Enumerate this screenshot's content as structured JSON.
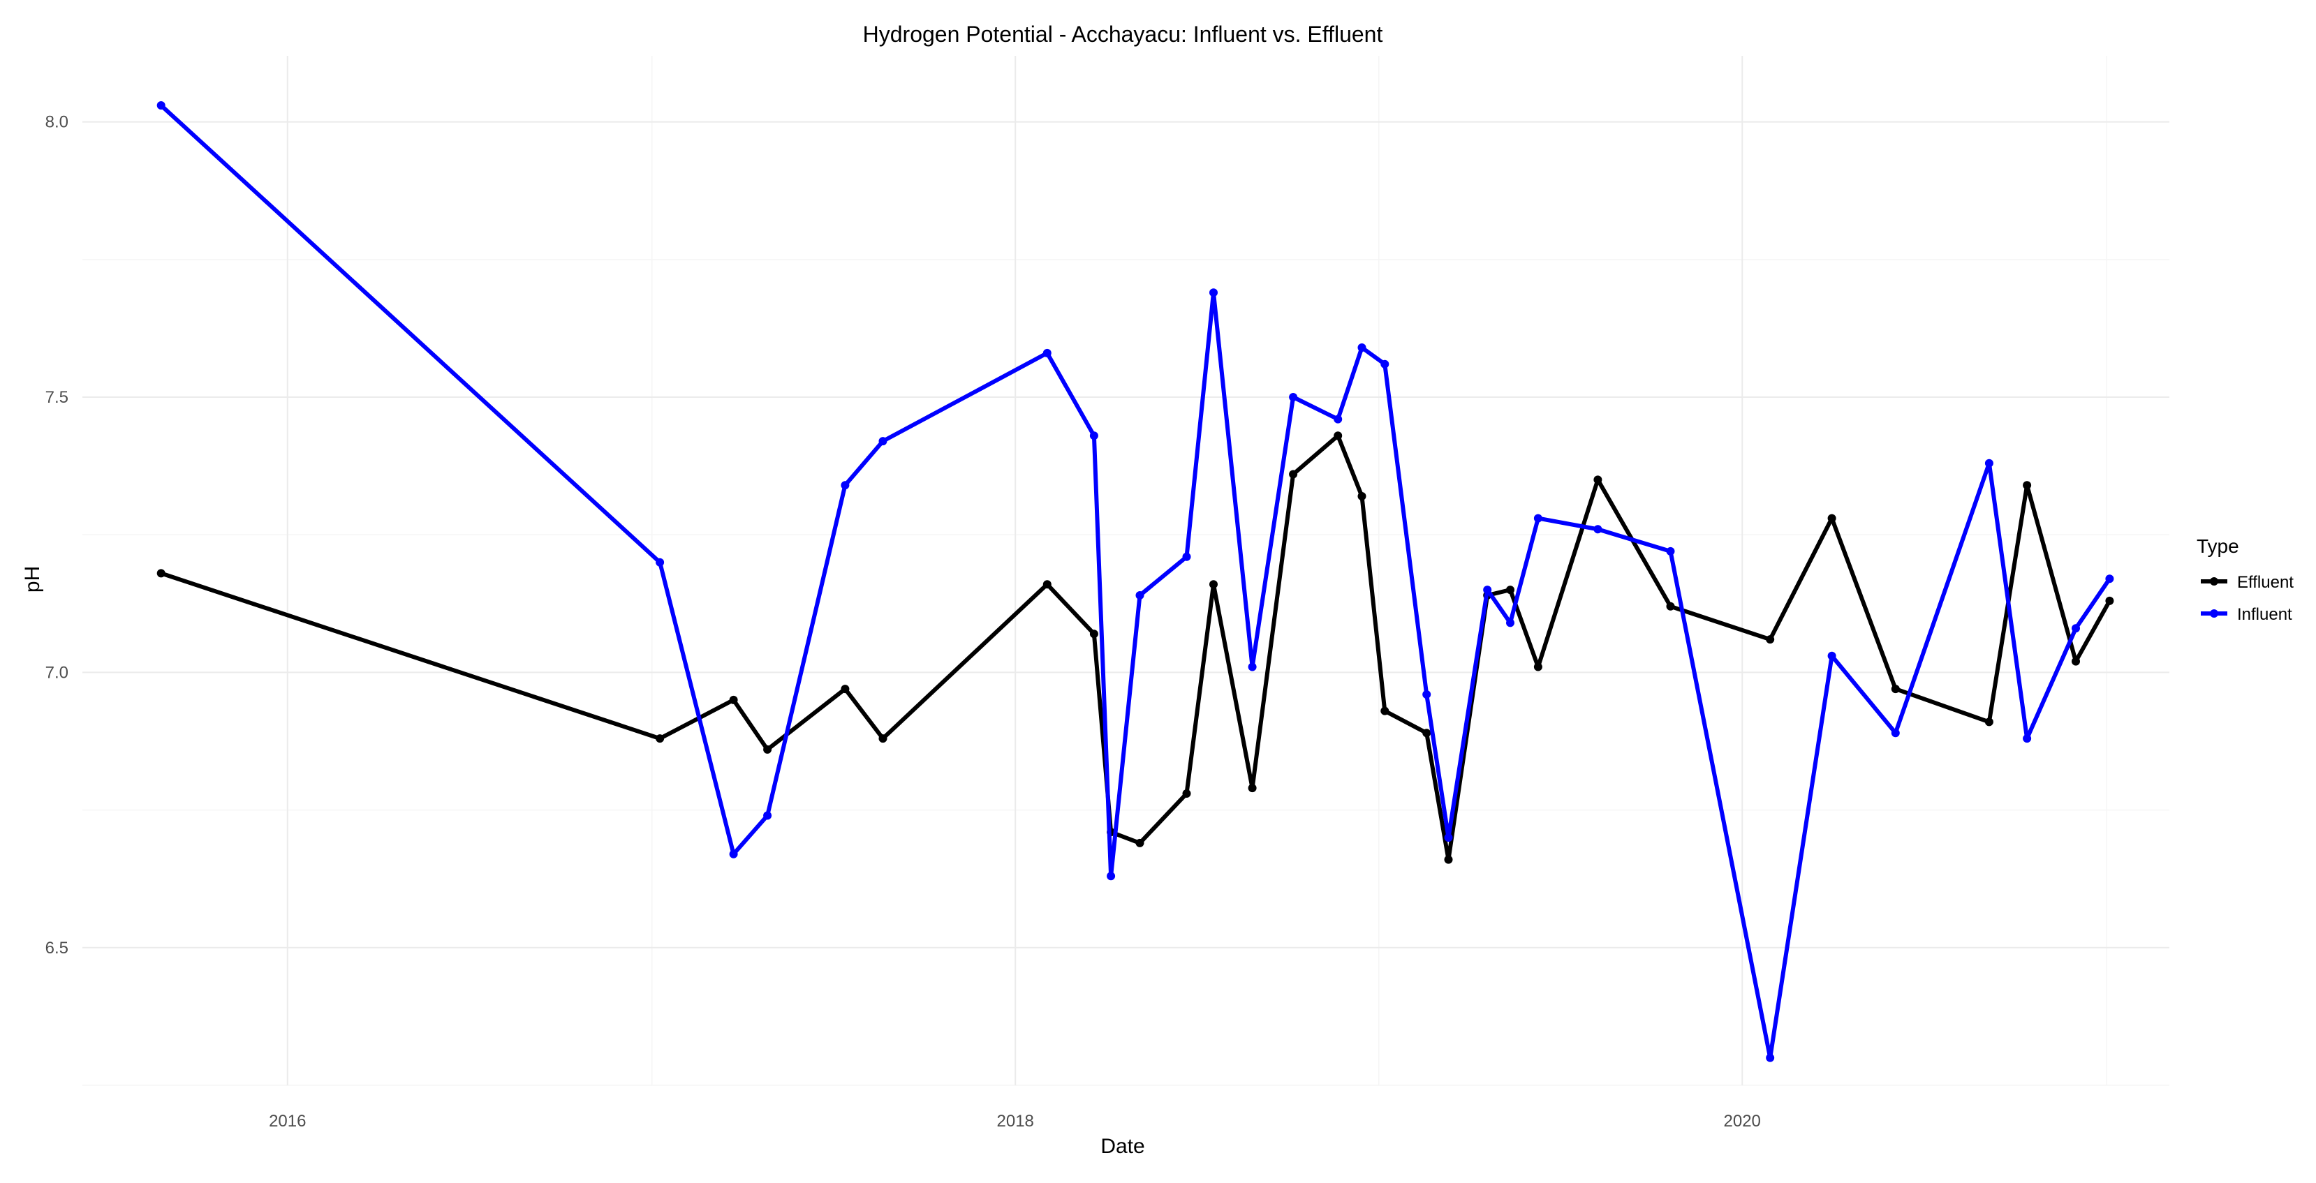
{
  "chart_data": {
    "type": "line",
    "title": "Hydrogen Potential - Acchayacu: Influent vs. Effluent",
    "xlabel": "Date",
    "ylabel": "pH",
    "x_ticks": [
      "2016",
      "2018",
      "2020"
    ],
    "y_ticks": [
      "6.5",
      "7.0",
      "7.5",
      "8.0"
    ],
    "xlim": [
      "2015-06-09",
      "2021-03-05"
    ],
    "ylim": [
      6.25,
      8.12
    ],
    "grid": true,
    "legend": {
      "title": "Type",
      "placement": "right"
    },
    "series": [
      {
        "name": "Effluent",
        "color": "#000000",
        "points": [
          [
            "2015-08-27",
            7.18
          ],
          [
            "2017-01-09",
            6.88
          ],
          [
            "2017-03-24",
            6.95
          ],
          [
            "2017-04-27",
            6.86
          ],
          [
            "2017-07-14",
            6.97
          ],
          [
            "2017-08-21",
            6.88
          ],
          [
            "2018-02-02",
            7.16
          ],
          [
            "2018-03-21",
            7.07
          ],
          [
            "2018-04-07",
            6.71
          ],
          [
            "2018-05-06",
            6.69
          ],
          [
            "2018-06-22",
            6.78
          ],
          [
            "2018-07-19",
            7.16
          ],
          [
            "2018-08-27",
            6.79
          ],
          [
            "2018-10-07",
            7.36
          ],
          [
            "2018-11-21",
            7.43
          ],
          [
            "2018-12-15",
            7.32
          ],
          [
            "2019-01-07",
            6.93
          ],
          [
            "2019-02-18",
            6.89
          ],
          [
            "2019-03-12",
            6.66
          ],
          [
            "2019-04-20",
            7.14
          ],
          [
            "2019-05-13",
            7.15
          ],
          [
            "2019-06-10",
            7.01
          ],
          [
            "2019-08-09",
            7.35
          ],
          [
            "2019-10-21",
            7.12
          ],
          [
            "2020-01-29",
            7.06
          ],
          [
            "2020-03-31",
            7.28
          ],
          [
            "2020-06-03",
            6.97
          ],
          [
            "2020-09-05",
            6.91
          ],
          [
            "2020-10-13",
            7.34
          ],
          [
            "2020-12-01",
            7.02
          ],
          [
            "2021-01-04",
            7.13
          ]
        ]
      },
      {
        "name": "Influent",
        "color": "#0000ff",
        "points": [
          [
            "2015-08-27",
            8.03
          ],
          [
            "2017-01-09",
            7.2
          ],
          [
            "2017-03-24",
            6.67
          ],
          [
            "2017-04-27",
            6.74
          ],
          [
            "2017-07-14",
            7.34
          ],
          [
            "2017-08-21",
            7.42
          ],
          [
            "2018-02-02",
            7.58
          ],
          [
            "2018-03-21",
            7.43
          ],
          [
            "2018-04-07",
            6.63
          ],
          [
            "2018-05-06",
            7.14
          ],
          [
            "2018-06-22",
            7.21
          ],
          [
            "2018-07-19",
            7.69
          ],
          [
            "2018-08-27",
            7.01
          ],
          [
            "2018-10-07",
            7.5
          ],
          [
            "2018-11-21",
            7.46
          ],
          [
            "2018-12-15",
            7.59
          ],
          [
            "2019-01-07",
            7.56
          ],
          [
            "2019-02-18",
            6.96
          ],
          [
            "2019-03-12",
            6.7
          ],
          [
            "2019-04-20",
            7.15
          ],
          [
            "2019-05-13",
            7.09
          ],
          [
            "2019-06-10",
            7.28
          ],
          [
            "2019-08-09",
            7.26
          ],
          [
            "2019-10-21",
            7.22
          ],
          [
            "2020-01-29",
            6.3
          ],
          [
            "2020-03-31",
            7.03
          ],
          [
            "2020-06-03",
            6.89
          ],
          [
            "2020-09-05",
            7.38
          ],
          [
            "2020-10-13",
            6.88
          ],
          [
            "2020-12-01",
            7.08
          ],
          [
            "2021-01-04",
            7.17
          ]
        ]
      }
    ]
  }
}
